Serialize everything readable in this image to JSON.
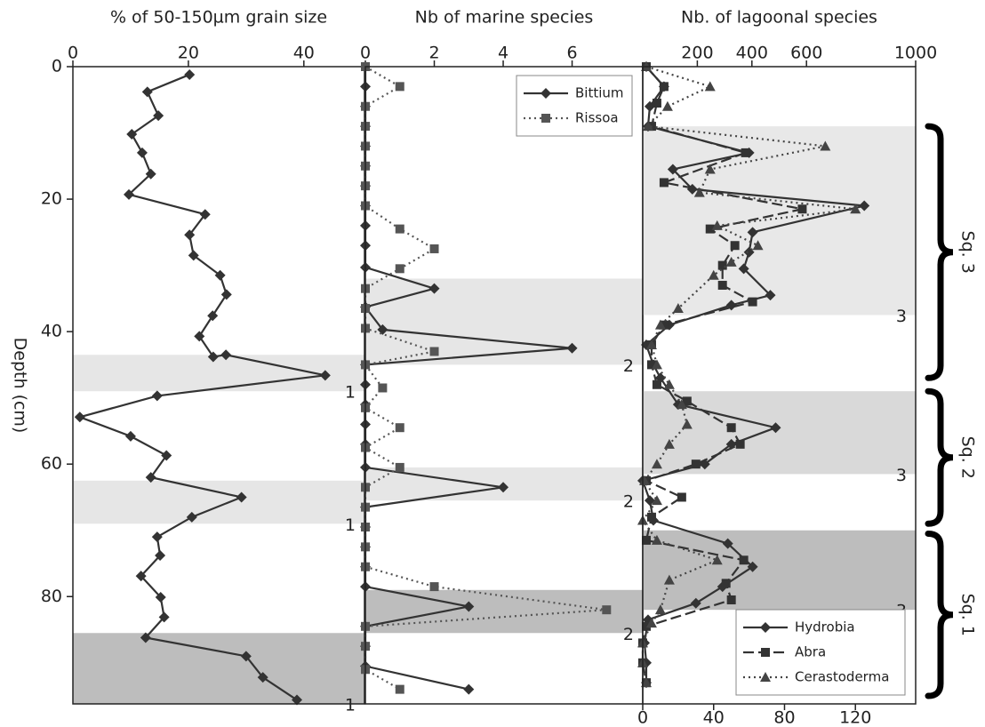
{
  "chart_data": [
    {
      "type": "line",
      "title": "% of 50-150µm grain size",
      "y_label": "Depth (cm)",
      "xlim": [
        0,
        50.5
      ],
      "xticks": [
        0,
        20,
        40
      ],
      "ylim": [
        0,
        96.2
      ],
      "yticks": [
        0,
        20,
        40,
        60,
        80
      ],
      "bands": [
        {
          "from": 43.5,
          "to": 49,
          "color": "#e6e6e6",
          "label": "1"
        },
        {
          "from": 62.5,
          "to": 69,
          "color": "#e6e6e6",
          "label": "1"
        },
        {
          "from": 85.5,
          "to": 96.2,
          "color": "#bdbdbd",
          "label": "1"
        }
      ],
      "series": [
        {
          "color": "#333333",
          "marker": "diamond",
          "dash": "solid",
          "y": [
            1.2,
            3.8,
            7.4,
            10.2,
            13,
            16.2,
            19.3,
            22.3,
            25.4,
            28.5,
            31.5,
            34.4,
            37.6,
            40.7,
            43.8,
            43.5,
            46.6,
            49.7,
            52.9,
            55.8,
            58.7,
            62,
            65,
            68,
            71,
            73.8,
            76.9,
            80.1,
            83.1,
            86.2,
            89,
            92.2,
            95.6
          ],
          "values": [
            20.2,
            12.9,
            14.8,
            10.2,
            12,
            13.5,
            9.7,
            22.9,
            20.2,
            20.9,
            25.5,
            26.6,
            24.2,
            21.9,
            24.3,
            26.5,
            43.7,
            14.6,
            1.2,
            10,
            16.2,
            13.5,
            29.2,
            20.6,
            14.6,
            15.1,
            11.8,
            15.2,
            15.8,
            12.6,
            30,
            32.9,
            38.8
          ]
        }
      ]
    },
    {
      "type": "line",
      "title": "Nb of marine species",
      "xlim": [
        0,
        8.05
      ],
      "xticks": [
        0,
        2,
        4,
        6
      ],
      "ylim": [
        0,
        96.2
      ],
      "legend": "top-right",
      "bands": [
        {
          "from": 32,
          "to": 45,
          "color": "#e6e6e6",
          "label": "2"
        },
        {
          "from": 60.5,
          "to": 65.5,
          "color": "#e6e6e6",
          "label": "2"
        },
        {
          "from": 79,
          "to": 85.5,
          "color": "#bdbdbd",
          "label": "2"
        }
      ],
      "series": [
        {
          "name": "Bittium",
          "color": "#333333",
          "marker": "diamond",
          "dash": "solid",
          "y": [
            0,
            3,
            6,
            9,
            12,
            15,
            18,
            21,
            24,
            27,
            30.3,
            33.5,
            36.3,
            39.7,
            42.5,
            45,
            48,
            51,
            54,
            57,
            60.5,
            63.5,
            66.5,
            69.5,
            72.5,
            75.5,
            78.5,
            81.5,
            84.5,
            87.5,
            90.5,
            94
          ],
          "values": [
            0,
            0,
            0,
            0,
            0,
            0,
            0,
            0,
            0,
            0,
            0,
            2,
            0,
            0.5,
            6,
            0,
            0,
            0,
            0,
            0,
            0,
            4,
            0,
            0,
            0,
            0,
            0,
            3,
            0,
            0,
            0,
            3
          ]
        },
        {
          "name": "Rissoa",
          "color": "#555555",
          "marker": "square",
          "dash": "dotted",
          "y": [
            0,
            3,
            6,
            9,
            12,
            15,
            18,
            21,
            24.5,
            27.5,
            30.5,
            33.5,
            36.5,
            39.5,
            43,
            45,
            48.5,
            51.5,
            54.5,
            57.5,
            60.5,
            63.5,
            66.5,
            69.5,
            72.5,
            75.5,
            78.5,
            82,
            84.5,
            87.5,
            91,
            94
          ],
          "values": [
            0,
            1,
            0,
            0,
            0,
            0,
            0,
            0,
            1,
            2,
            1,
            0,
            0,
            0,
            2,
            0,
            0.5,
            0,
            1,
            0,
            1,
            0,
            0,
            0,
            0,
            0,
            2,
            7,
            0,
            0,
            0,
            1
          ]
        }
      ]
    },
    {
      "type": "line",
      "title": "Nb. of lagoonal species",
      "xlim": [
        0,
        154
      ],
      "xticks": [
        0,
        40,
        80,
        120
      ],
      "x2lim": [
        0,
        1000
      ],
      "x2ticks": [
        200,
        400,
        600,
        1000
      ],
      "ylim": [
        0,
        96.2
      ],
      "legend": "bottom-right",
      "bands": [
        {
          "from": 9,
          "to": 37.5,
          "color": "#e8e8e8",
          "label": "3"
        },
        {
          "from": 49,
          "to": 61.5,
          "color": "#d9d9d9",
          "label": "3"
        },
        {
          "from": 70,
          "to": 82,
          "color": "#bdbdbd",
          "label": "3"
        }
      ],
      "sequences": [
        {
          "label": "Sq. 3",
          "from": 9,
          "to": 47
        },
        {
          "label": "Sq. 2",
          "from": 49,
          "to": 69
        },
        {
          "label": "Sq. 1",
          "from": 70.5,
          "to": 95
        }
      ],
      "series": [
        {
          "name": "Hydrobia",
          "color": "#333333",
          "marker": "diamond",
          "dash": "solid",
          "y": [
            0,
            3,
            6,
            9,
            13,
            15.5,
            18.5,
            21,
            25,
            28,
            30.5,
            34.5,
            36,
            39,
            42,
            45,
            47,
            51,
            54.5,
            57,
            60,
            62.5,
            65.5,
            68.5,
            72,
            75.5,
            78.5,
            81,
            83.5,
            87,
            90,
            93
          ],
          "values": [
            2,
            12,
            4,
            3,
            60,
            17,
            28,
            125,
            62,
            60,
            57,
            72,
            50,
            15,
            2,
            6,
            10,
            20,
            75,
            50,
            35,
            0,
            4,
            6,
            48,
            62,
            45,
            30,
            3,
            1,
            2,
            2
          ]
        },
        {
          "name": "Abra",
          "color": "#333333",
          "marker": "square",
          "dash": "dashed",
          "y": [
            0,
            3,
            5.5,
            9,
            13,
            17.5,
            21.5,
            24.5,
            27,
            30,
            33,
            35.5,
            39,
            42,
            45,
            48,
            50.5,
            54.5,
            57,
            60,
            62.5,
            65,
            68,
            71.5,
            74.5,
            78,
            80.5,
            84.5,
            87,
            90,
            93
          ],
          "values": [
            2,
            12,
            8,
            5,
            58,
            12,
            90,
            38,
            52,
            45,
            45,
            62,
            12,
            5,
            5,
            8,
            25,
            50,
            55,
            30,
            2,
            22,
            5,
            2,
            57,
            47,
            50,
            2,
            0,
            0,
            2
          ]
        },
        {
          "name": "Cerastoderma",
          "color": "#444444",
          "marker": "triangle",
          "dash": "dotted",
          "y": [
            0,
            3,
            6,
            9,
            12,
            15.5,
            19,
            21.5,
            24,
            27,
            29.5,
            31.5,
            36.5,
            39,
            42,
            45,
            48,
            51,
            54,
            57,
            60,
            62.5,
            65.5,
            68.5,
            71.5,
            74.5,
            77.5,
            82,
            84,
            87,
            90,
            93
          ],
          "values": [
            2,
            38,
            14,
            3,
            103,
            38,
            32,
            120,
            42,
            65,
            50,
            40,
            20,
            10,
            5,
            8,
            15,
            22,
            25,
            15,
            8,
            1,
            8,
            0,
            8,
            42,
            15,
            10,
            5,
            0,
            0,
            2
          ]
        }
      ]
    }
  ]
}
